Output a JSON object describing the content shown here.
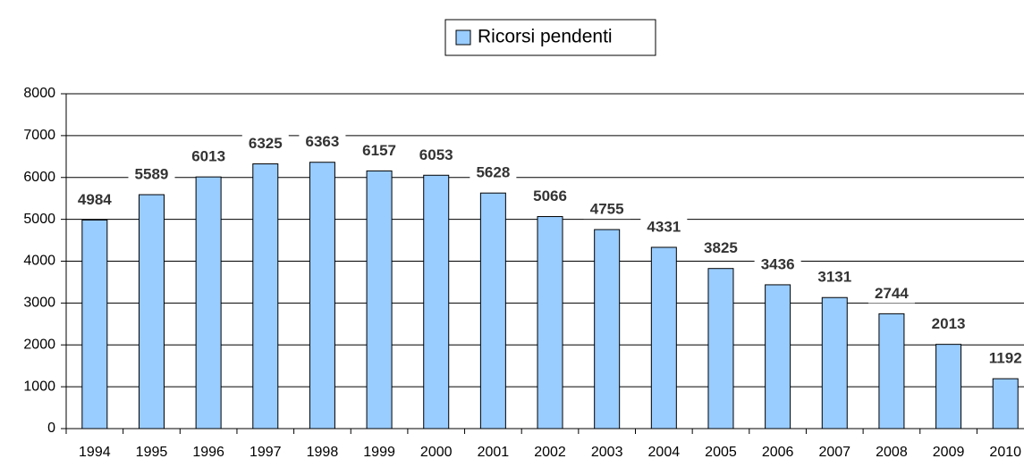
{
  "chart_data": {
    "type": "bar",
    "categories": [
      "1994",
      "1995",
      "1996",
      "1997",
      "1998",
      "1999",
      "2000",
      "2001",
      "2002",
      "2003",
      "2004",
      "2005",
      "2006",
      "2007",
      "2008",
      "2009",
      "2010"
    ],
    "series": [
      {
        "name": "Ricorsi pendenti",
        "color": "#99ccff",
        "values": [
          4984,
          5589,
          6013,
          6325,
          6363,
          6157,
          6053,
          5628,
          5066,
          4755,
          4331,
          3825,
          3436,
          3131,
          2744,
          2013,
          1192
        ]
      }
    ],
    "ylim": [
      0,
      8000
    ],
    "yticks": [
      0,
      1000,
      2000,
      3000,
      4000,
      5000,
      6000,
      7000,
      8000
    ],
    "grid": true,
    "legend": "top"
  }
}
